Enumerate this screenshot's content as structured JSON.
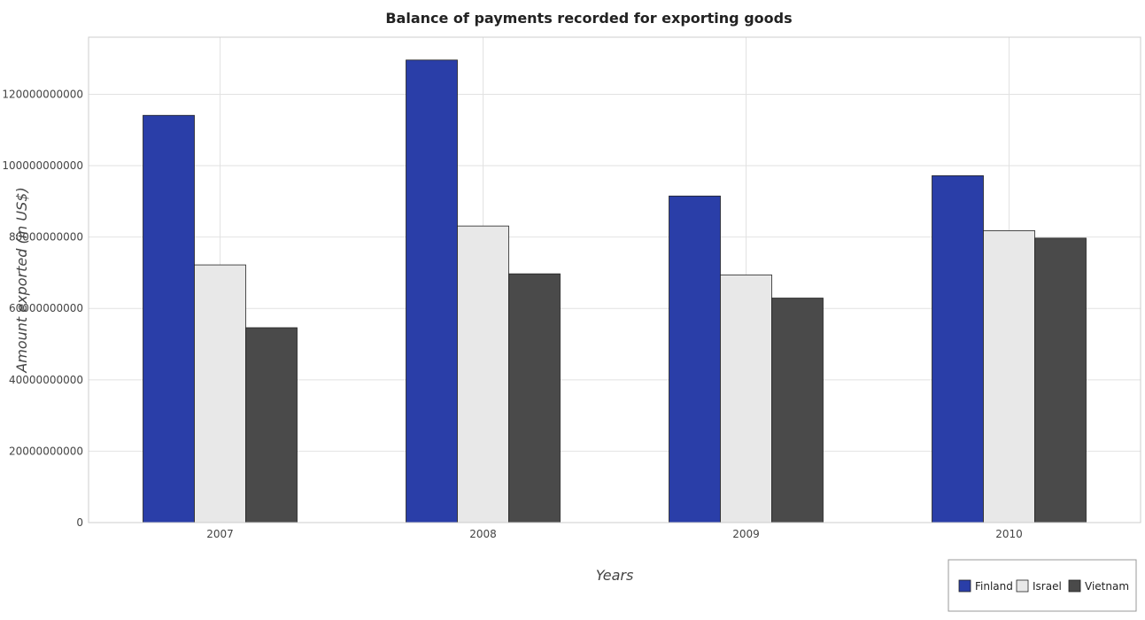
{
  "chart_data": {
    "type": "bar",
    "title": "Balance of payments recorded for exporting goods",
    "xlabel": "Years",
    "ylabel": "Amount exported (in US$)",
    "categories": [
      "2007",
      "2008",
      "2009",
      "2010"
    ],
    "series": [
      {
        "name": "Finland",
        "color": "#2a3ea8",
        "values": [
          114100000000,
          129600000000,
          91500000000,
          97200000000
        ]
      },
      {
        "name": "Israel",
        "color": "#e8e8e8",
        "values": [
          72200000000,
          83100000000,
          69400000000,
          81800000000
        ]
      },
      {
        "name": "Vietnam",
        "color": "#4a4a4a",
        "values": [
          54600000000,
          69700000000,
          62900000000,
          79700000000
        ]
      }
    ],
    "ylim": [
      0,
      136000000000
    ],
    "yticks": [
      0,
      20000000000,
      40000000000,
      60000000000,
      80000000000,
      100000000000,
      120000000000
    ],
    "ytick_labels": [
      "0",
      "20000000000",
      "40000000000",
      "60000000000",
      "80000000000",
      "100000000000",
      "120000000000"
    ],
    "grid": true,
    "legend_position": "bottom-right"
  }
}
